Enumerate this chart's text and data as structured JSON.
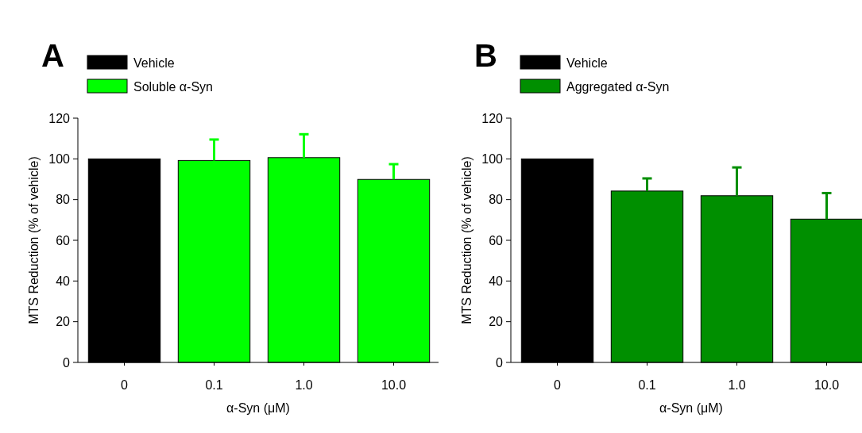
{
  "chart_data": [
    {
      "type": "bar",
      "title": "A",
      "xlabel": "α-Syn (μM)",
      "ylabel": "MTS Reduction (% of vehicle)",
      "categories": [
        "0",
        "0.1",
        "1.0",
        "10.0"
      ],
      "ylim": [
        0,
        120
      ],
      "yticks": [
        0,
        20,
        40,
        60,
        80,
        100,
        120
      ],
      "legend": "top left",
      "series": [
        {
          "name": "Vehicle",
          "color": "#000000",
          "values": [
            100,
            null,
            null,
            null
          ]
        },
        {
          "name": "Soluble α-Syn",
          "color": "#00ff00",
          "values": [
            null,
            99.2,
            100.6,
            89.9
          ],
          "errors": [
            null,
            [
              99.2,
              109.5
            ],
            [
              100.6,
              112.1
            ],
            [
              89.9,
              97.4
            ]
          ]
        }
      ]
    },
    {
      "type": "bar",
      "title": "B",
      "xlabel": "α-Syn (μM)",
      "ylabel": "MTS Reduction (% of vehicle)",
      "categories": [
        "0",
        "0.1",
        "1.0",
        "10.0"
      ],
      "ylim": [
        0,
        120
      ],
      "yticks": [
        0,
        20,
        40,
        60,
        80,
        100,
        120
      ],
      "legend": "top left",
      "series": [
        {
          "name": "Vehicle",
          "color": "#000000",
          "values": [
            100,
            null,
            null,
            null
          ]
        },
        {
          "name": "Aggregated α-Syn",
          "color": "#008f00",
          "values": [
            null,
            84.2,
            81.9,
            70.4
          ],
          "errors": [
            null,
            [
              84.2,
              90.4
            ],
            [
              81.9,
              95.8
            ],
            [
              70.4,
              83.2
            ]
          ]
        }
      ]
    }
  ]
}
